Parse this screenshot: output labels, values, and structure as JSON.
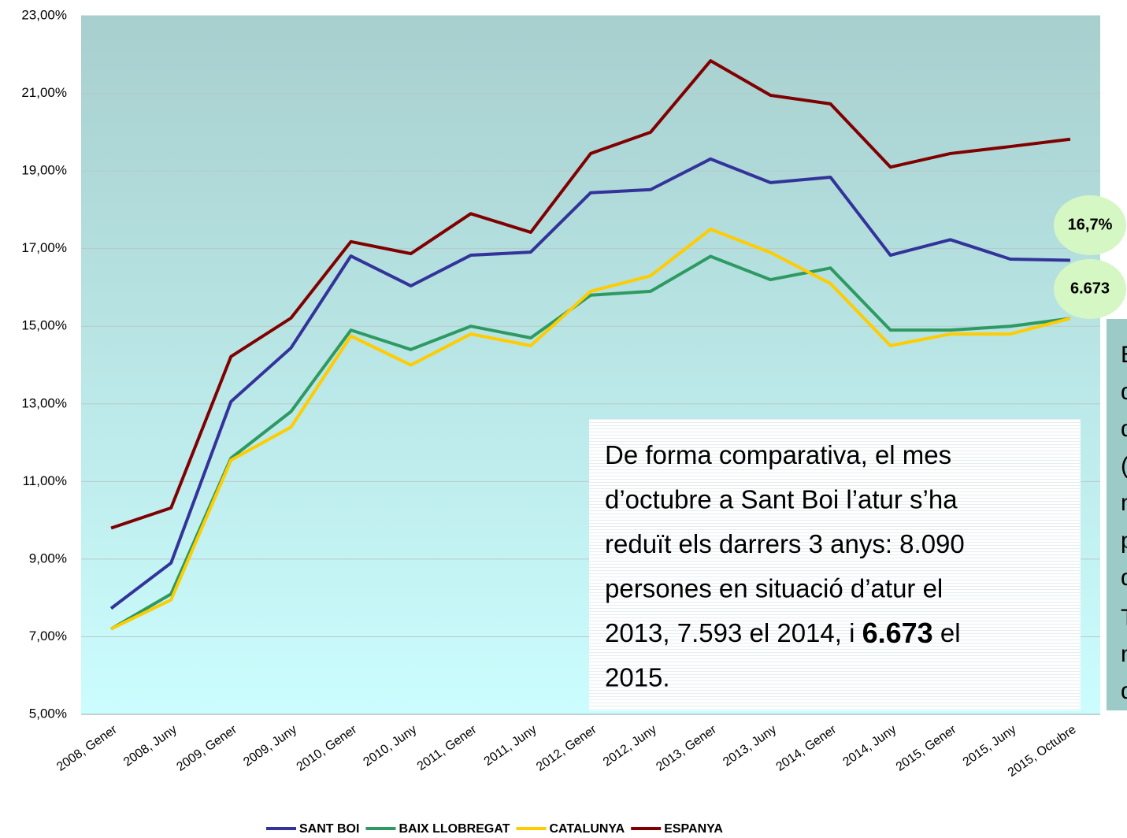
{
  "chart_data": {
    "type": "line",
    "categories": [
      "2008, Gener",
      "2008, Juny",
      "2009, Gener",
      "2009, Juny",
      "2010, Gener",
      "2010, Juny",
      "2011, Gener",
      "2011, Juny",
      "2012, Gener",
      "2012, Juny",
      "2013, Gener",
      "2013, Juny",
      "2014, Gener",
      "2014, Juny",
      "2015, Gener",
      "2015, Juny",
      "2015, Octubre"
    ],
    "series": [
      {
        "name": "SANT BOI",
        "color": "#33339a",
        "values": [
          7.73,
          8.9,
          13.06,
          14.44,
          16.81,
          16.04,
          16.83,
          16.91,
          18.44,
          18.52,
          19.31,
          18.7,
          18.84,
          16.83,
          17.23,
          16.73,
          16.7
        ]
      },
      {
        "name": "BAIX LLOBREGAT",
        "color": "#2e9a62",
        "values": [
          7.2,
          8.1,
          11.6,
          12.8,
          14.9,
          14.4,
          15.0,
          14.7,
          15.8,
          15.9,
          16.8,
          16.2,
          16.5,
          14.9,
          14.9,
          15.0,
          15.2
        ]
      },
      {
        "name": "CATALUNYA",
        "color": "#ffcc00",
        "values": [
          7.2,
          7.95,
          11.55,
          12.4,
          14.75,
          14.0,
          14.8,
          14.5,
          15.9,
          16.3,
          17.5,
          16.9,
          16.1,
          14.5,
          14.8,
          14.8,
          15.2
        ]
      },
      {
        "name": "ESPANYA",
        "color": "#800000",
        "values": [
          9.8,
          10.32,
          14.22,
          15.21,
          17.18,
          16.87,
          17.9,
          17.42,
          19.45,
          20.0,
          21.84,
          20.95,
          20.73,
          19.1,
          19.45,
          19.63,
          19.82
        ]
      }
    ],
    "ylim": [
      5,
      23
    ],
    "yticks": [
      {
        "value": 5,
        "label": "5,00%"
      },
      {
        "value": 7,
        "label": "7,00%"
      },
      {
        "value": 9,
        "label": "9,00%"
      },
      {
        "value": 11,
        "label": "11,00%"
      },
      {
        "value": 13,
        "label": "13,00%"
      },
      {
        "value": 15,
        "label": "15,00%"
      },
      {
        "value": 17,
        "label": "17,00%"
      },
      {
        "value": 19,
        "label": "19,00%"
      },
      {
        "value": 21,
        "label": "21,00%"
      },
      {
        "value": 23,
        "label": "23,00%"
      }
    ],
    "grid": true,
    "legend": "bottom",
    "badges": [
      "16,7%",
      "6.673"
    ],
    "note": [
      [
        {
          "text": "De forma comparativa, el mes"
        }
      ],
      [
        {
          "text": "d’octubre a Sant Boi l’atur s’ha"
        }
      ],
      [
        {
          "text": "reduït els darrers 3 anys: 8.090"
        }
      ],
      [
        {
          "text": "persones en situació d’atur el"
        }
      ],
      [
        {
          "text": "2013, 7.593 el 2014, i "
        },
        {
          "text": "6.673",
          "bold": true
        },
        {
          "text": " el"
        }
      ],
      [
        {
          "text": "2015."
        }
      ]
    ],
    "side_note_fragments": [
      "E",
      "d",
      "d",
      "(",
      "n",
      "p",
      "d",
      "T",
      "n",
      "d"
    ]
  }
}
